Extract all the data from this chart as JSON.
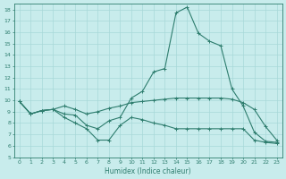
{
  "xlabel": "Humidex (Indice chaleur)",
  "background_color": "#c8ecec",
  "line_color": "#2e7d6e",
  "grid_color": "#a8d8d8",
  "xlim": [
    -0.5,
    23.5
  ],
  "ylim": [
    5,
    18.5
  ],
  "yticks": [
    5,
    6,
    7,
    8,
    9,
    10,
    11,
    12,
    13,
    14,
    15,
    16,
    17,
    18
  ],
  "xticks": [
    0,
    1,
    2,
    3,
    4,
    5,
    6,
    7,
    8,
    9,
    10,
    11,
    12,
    13,
    14,
    15,
    16,
    17,
    18,
    19,
    20,
    21,
    22,
    23
  ],
  "line1_x": [
    0,
    1,
    2,
    3,
    4,
    5,
    6,
    7,
    8,
    9,
    10,
    11,
    12,
    13,
    14,
    15,
    16,
    17,
    18,
    19,
    20,
    21,
    22,
    23
  ],
  "line1_y": [
    9.9,
    8.8,
    9.1,
    9.2,
    8.8,
    8.7,
    7.8,
    7.5,
    8.2,
    8.5,
    10.2,
    10.8,
    12.5,
    12.8,
    17.7,
    18.2,
    15.9,
    15.2,
    14.8,
    11.0,
    9.5,
    7.2,
    6.4,
    6.3
  ],
  "line2_x": [
    0,
    1,
    2,
    3,
    4,
    5,
    6,
    7,
    8,
    9,
    10,
    11,
    12,
    13,
    14,
    15,
    16,
    17,
    18,
    19,
    20,
    21,
    22,
    23
  ],
  "line2_y": [
    9.9,
    8.8,
    9.1,
    9.2,
    9.5,
    9.2,
    8.8,
    9.0,
    9.3,
    9.5,
    9.8,
    9.9,
    10.0,
    10.1,
    10.2,
    10.2,
    10.2,
    10.2,
    10.2,
    10.1,
    9.8,
    9.2,
    7.7,
    6.5
  ],
  "line3_x": [
    0,
    1,
    2,
    3,
    4,
    5,
    6,
    7,
    8,
    9,
    10,
    11,
    12,
    13,
    14,
    15,
    16,
    17,
    18,
    19,
    20,
    21,
    22,
    23
  ],
  "line3_y": [
    9.9,
    8.8,
    9.1,
    9.2,
    8.5,
    8.0,
    7.5,
    6.5,
    6.5,
    7.8,
    8.5,
    8.3,
    8.0,
    7.8,
    7.5,
    7.5,
    7.5,
    7.5,
    7.5,
    7.5,
    7.5,
    6.5,
    6.3,
    6.2
  ]
}
